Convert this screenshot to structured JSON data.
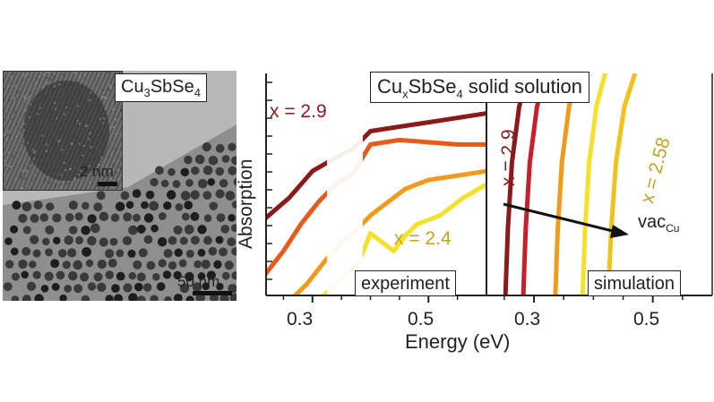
{
  "tem": {
    "compound": {
      "prefix": "Cu",
      "sub1": "3",
      "mid": "SbSe",
      "sub2": "4"
    },
    "inset_scale": "2 nm",
    "main_scale": "50 nm"
  },
  "figure": {
    "title": {
      "prefix": "Cu",
      "sub1": "x",
      "mid": "SbSe",
      "sub2": "4",
      "suffix": " solid solution"
    },
    "ylabel": "Absorption",
    "xlabel": "Energy (eV)",
    "x_ticks": [
      {
        "label": "0.3",
        "panel": "experiment"
      },
      {
        "label": "0.5",
        "panel": "experiment"
      },
      {
        "label": "0.3",
        "panel": "simulation"
      },
      {
        "label": "0.5",
        "panel": "simulation"
      }
    ],
    "colors": [
      "#8b1a1a",
      "#c8202a",
      "#e85a1a",
      "#f29a1a",
      "#f2c21a",
      "#f5e02a"
    ]
  },
  "chart_data": [
    {
      "type": "line",
      "panel": "experiment",
      "xlabel": "Energy (eV)",
      "ylabel": "Absorption",
      "xlim": [
        0.22,
        0.6
      ],
      "ylim": [
        0,
        1
      ],
      "x_ticks": [
        0.3,
        0.5
      ],
      "annotations": [
        "x = 2.9",
        "x = 2.4",
        "experiment"
      ],
      "series": [
        {
          "color": "#8b1a1a",
          "points": [
            [
              0.22,
              0.35
            ],
            [
              0.26,
              0.44
            ],
            [
              0.3,
              0.56
            ],
            [
              0.34,
              0.62
            ],
            [
              0.37,
              0.66
            ],
            [
              0.4,
              0.74
            ],
            [
              0.45,
              0.76
            ],
            [
              0.5,
              0.78
            ],
            [
              0.55,
              0.8
            ],
            [
              0.6,
              0.82
            ]
          ]
        },
        {
          "color": "#e85a1a",
          "points": [
            [
              0.22,
              0.1
            ],
            [
              0.25,
              0.2
            ],
            [
              0.28,
              0.32
            ],
            [
              0.31,
              0.42
            ],
            [
              0.34,
              0.5
            ],
            [
              0.37,
              0.55
            ],
            [
              0.4,
              0.68
            ],
            [
              0.45,
              0.7
            ],
            [
              0.5,
              0.69
            ],
            [
              0.55,
              0.68
            ],
            [
              0.6,
              0.68
            ]
          ]
        },
        {
          "color": "#f29a1a",
          "points": [
            [
              0.27,
              0.0
            ],
            [
              0.29,
              0.05
            ],
            [
              0.32,
              0.15
            ],
            [
              0.35,
              0.24
            ],
            [
              0.37,
              0.28
            ],
            [
              0.4,
              0.36
            ],
            [
              0.43,
              0.42
            ],
            [
              0.46,
              0.48
            ],
            [
              0.5,
              0.52
            ],
            [
              0.55,
              0.54
            ],
            [
              0.6,
              0.56
            ]
          ]
        },
        {
          "color": "#f5e02a",
          "points": [
            [
              0.32,
              0.0
            ],
            [
              0.34,
              0.05
            ],
            [
              0.36,
              0.1
            ],
            [
              0.38,
              0.15
            ],
            [
              0.4,
              0.28
            ],
            [
              0.42,
              0.24
            ],
            [
              0.44,
              0.2
            ],
            [
              0.46,
              0.27
            ],
            [
              0.48,
              0.32
            ],
            [
              0.52,
              0.36
            ],
            [
              0.56,
              0.44
            ],
            [
              0.6,
              0.5
            ]
          ]
        }
      ]
    },
    {
      "type": "line",
      "panel": "simulation",
      "xlabel": "Energy (eV)",
      "xlim": [
        0.22,
        0.6
      ],
      "ylim": [
        0,
        1
      ],
      "x_ticks": [
        0.3,
        0.5
      ],
      "annotations": [
        "x = 2.9",
        "x = 2.58",
        "vacCu",
        "simulation"
      ],
      "series": [
        {
          "color": "#8b1a1a",
          "points": [
            [
              0.252,
              0.0
            ],
            [
              0.256,
              0.3
            ],
            [
              0.263,
              0.6
            ],
            [
              0.275,
              0.85
            ],
            [
              0.29,
              1.0
            ]
          ]
        },
        {
          "color": "#c8202a",
          "points": [
            [
              0.282,
              0.0
            ],
            [
              0.286,
              0.3
            ],
            [
              0.293,
              0.6
            ],
            [
              0.305,
              0.85
            ],
            [
              0.32,
              1.0
            ]
          ]
        },
        {
          "color": "#f29a1a",
          "points": [
            [
              0.336,
              0.0
            ],
            [
              0.34,
              0.3
            ],
            [
              0.347,
              0.6
            ],
            [
              0.359,
              0.85
            ],
            [
              0.374,
              1.0
            ]
          ]
        },
        {
          "color": "#f5e02a",
          "points": [
            [
              0.382,
              0.0
            ],
            [
              0.386,
              0.3
            ],
            [
              0.393,
              0.6
            ],
            [
              0.405,
              0.85
            ],
            [
              0.42,
              1.0
            ]
          ]
        },
        {
          "color": "#f2c21a",
          "points": [
            [
              0.425,
              0.0
            ],
            [
              0.43,
              0.3
            ],
            [
              0.438,
              0.6
            ],
            [
              0.452,
              0.85
            ],
            [
              0.47,
              1.0
            ]
          ]
        }
      ]
    }
  ]
}
